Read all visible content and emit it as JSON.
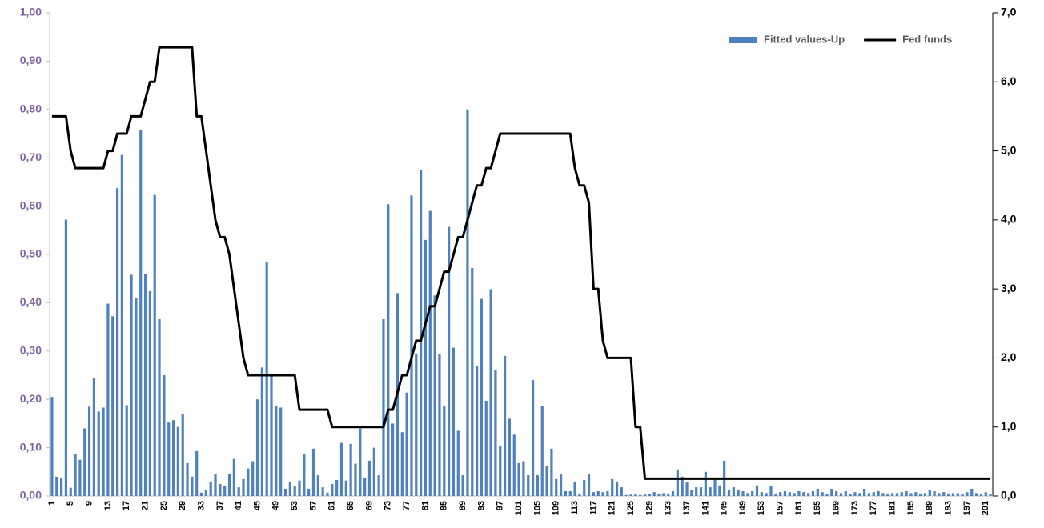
{
  "chart_data": {
    "type": "bar",
    "categories": [
      "1",
      null,
      null,
      null,
      "5",
      null,
      null,
      null,
      "9",
      null,
      null,
      null,
      "13",
      null,
      null,
      null,
      "17",
      null,
      null,
      null,
      "21",
      null,
      null,
      null,
      "25",
      null,
      null,
      null,
      "29",
      null,
      null,
      null,
      "33",
      null,
      null,
      null,
      "37",
      null,
      null,
      null,
      "41",
      null,
      null,
      null,
      "45",
      null,
      null,
      null,
      "49",
      null,
      null,
      null,
      "53",
      null,
      null,
      null,
      "57",
      null,
      null,
      null,
      "61",
      null,
      null,
      null,
      "65",
      null,
      null,
      null,
      "69",
      null,
      null,
      null,
      "73",
      null,
      null,
      null,
      "77",
      null,
      null,
      null,
      "81",
      null,
      null,
      null,
      "85",
      null,
      null,
      null,
      "89",
      null,
      null,
      null,
      "93",
      null,
      null,
      null,
      "97",
      null,
      null,
      null,
      "101",
      null,
      null,
      null,
      "105",
      null,
      null,
      null,
      "109",
      null,
      null,
      null,
      "113",
      null,
      null,
      null,
      "117",
      null,
      null,
      null,
      "121",
      null,
      null,
      null,
      "125",
      null,
      null,
      null,
      "129",
      null,
      null,
      null,
      "133",
      null,
      null,
      null,
      "137",
      null,
      null,
      null,
      "141",
      null,
      null,
      null,
      "145",
      null,
      null,
      null,
      "149",
      null,
      null,
      null,
      "153",
      null,
      null,
      null,
      "157",
      null,
      null,
      null,
      "161",
      null,
      null,
      null,
      "165",
      null,
      null,
      null,
      "169",
      null,
      null,
      null,
      "173",
      null,
      null,
      null,
      "177",
      null,
      null,
      null,
      "181",
      null,
      null,
      null,
      "185",
      null,
      null,
      null,
      "189",
      null,
      null,
      null,
      "193",
      null,
      null,
      null,
      "197",
      null,
      null,
      null,
      "201",
      null
    ],
    "series": [
      {
        "name": "Fitted values-Up",
        "type": "bar",
        "axis": "y",
        "color": "#4f81bd",
        "values": [
          0.205,
          0.04,
          0.037,
          0.572,
          0.017,
          0.087,
          0.075,
          0.14,
          0.185,
          0.245,
          0.175,
          0.183,
          0.398,
          0.372,
          0.637,
          0.706,
          0.188,
          0.458,
          0.41,
          0.757,
          0.46,
          0.424,
          0.623,
          0.366,
          0.25,
          0.152,
          0.157,
          0.143,
          0.17,
          0.068,
          0.04,
          0.093,
          0.007,
          0.012,
          0.03,
          0.045,
          0.025,
          0.02,
          0.045,
          0.077,
          0.018,
          0.035,
          0.057,
          0.072,
          0.2,
          0.266,
          0.484,
          0.25,
          0.186,
          0.183,
          0.015,
          0.03,
          0.02,
          0.032,
          0.087,
          0.015,
          0.098,
          0.043,
          0.018,
          0.007,
          0.025,
          0.033,
          0.11,
          0.032,
          0.108,
          0.067,
          0.14,
          0.037,
          0.073,
          0.1,
          0.043,
          0.366,
          0.604,
          0.15,
          0.42,
          0.132,
          0.214,
          0.622,
          0.295,
          0.675,
          0.53,
          0.59,
          0.415,
          0.293,
          0.187,
          0.557,
          0.307,
          0.135,
          0.043,
          0.8,
          0.472,
          0.27,
          0.408,
          0.197,
          0.428,
          0.26,
          0.103,
          0.29,
          0.16,
          0.127,
          0.068,
          0.072,
          0.043,
          0.24,
          0.043,
          0.187,
          0.063,
          0.098,
          0.035,
          0.045,
          0.01,
          0.01,
          0.03,
          0.005,
          0.033,
          0.045,
          0.008,
          0.01,
          0.008,
          0.01,
          0.035,
          0.03,
          0.018,
          0.002,
          0.003,
          0.004,
          0.002,
          0.003,
          0.005,
          0.008,
          0.004,
          0.006,
          0.004,
          0.01,
          0.055,
          0.04,
          0.028,
          0.012,
          0.018,
          0.018,
          0.05,
          0.018,
          0.035,
          0.022,
          0.073,
          0.012,
          0.018,
          0.012,
          0.01,
          0.006,
          0.01,
          0.022,
          0.008,
          0.006,
          0.02,
          0.004,
          0.008,
          0.01,
          0.008,
          0.006,
          0.01,
          0.008,
          0.006,
          0.01,
          0.015,
          0.008,
          0.005,
          0.015,
          0.01,
          0.006,
          0.01,
          0.005,
          0.008,
          0.006,
          0.015,
          0.006,
          0.008,
          0.01,
          0.006,
          0.005,
          0.006,
          0.006,
          0.008,
          0.01,
          0.006,
          0.008,
          0.005,
          0.006,
          0.012,
          0.01,
          0.006,
          0.008,
          0.005,
          0.006,
          0.006,
          0.004,
          0.008,
          0.015,
          0.006,
          0.005,
          0.008,
          0.004
        ]
      },
      {
        "name": "Fed funds",
        "type": "line",
        "axis": "y2",
        "color": "#000000",
        "values": [
          5.5,
          5.5,
          5.5,
          5.5,
          5.0,
          4.75,
          4.75,
          4.75,
          4.75,
          4.75,
          4.75,
          4.75,
          5.0,
          5.0,
          5.25,
          5.25,
          5.25,
          5.5,
          5.5,
          5.5,
          5.75,
          6.0,
          6.0,
          6.5,
          6.5,
          6.5,
          6.5,
          6.5,
          6.5,
          6.5,
          6.5,
          5.5,
          5.5,
          5.0,
          4.5,
          4.0,
          3.75,
          3.75,
          3.5,
          3.0,
          2.5,
          2.0,
          1.75,
          1.75,
          1.75,
          1.75,
          1.75,
          1.75,
          1.75,
          1.75,
          1.75,
          1.75,
          1.75,
          1.25,
          1.25,
          1.25,
          1.25,
          1.25,
          1.25,
          1.25,
          1.0,
          1.0,
          1.0,
          1.0,
          1.0,
          1.0,
          1.0,
          1.0,
          1.0,
          1.0,
          1.0,
          1.0,
          1.25,
          1.25,
          1.5,
          1.75,
          1.75,
          2.0,
          2.25,
          2.25,
          2.5,
          2.75,
          2.75,
          3.0,
          3.25,
          3.25,
          3.5,
          3.75,
          3.75,
          4.0,
          4.25,
          4.5,
          4.5,
          4.75,
          4.75,
          5.0,
          5.25,
          5.25,
          5.25,
          5.25,
          5.25,
          5.25,
          5.25,
          5.25,
          5.25,
          5.25,
          5.25,
          5.25,
          5.25,
          5.25,
          5.25,
          5.25,
          4.75,
          4.5,
          4.5,
          4.25,
          3.0,
          3.0,
          2.25,
          2.0,
          2.0,
          2.0,
          2.0,
          2.0,
          2.0,
          1.0,
          1.0,
          0.25,
          0.25,
          0.25,
          0.25,
          0.25,
          0.25,
          0.25,
          0.25,
          0.25,
          0.25,
          0.25,
          0.25,
          0.25,
          0.25,
          0.25,
          0.25,
          0.25,
          0.25,
          0.25,
          0.25,
          0.25,
          0.25,
          0.25,
          0.25,
          0.25,
          0.25,
          0.25,
          0.25,
          0.25,
          0.25,
          0.25,
          0.25,
          0.25,
          0.25,
          0.25,
          0.25,
          0.25,
          0.25,
          0.25,
          0.25,
          0.25,
          0.25,
          0.25,
          0.25,
          0.25,
          0.25,
          0.25,
          0.25,
          0.25,
          0.25,
          0.25,
          0.25,
          0.25,
          0.25,
          0.25,
          0.25,
          0.25,
          0.25,
          0.25,
          0.25,
          0.25,
          0.25,
          0.25,
          0.25,
          0.25,
          0.25,
          0.25,
          0.25,
          0.25,
          0.25,
          0.25,
          0.25,
          0.25,
          0.25,
          0.25
        ]
      }
    ],
    "ylim": [
      0,
      1
    ],
    "yticks": [
      {
        "value": 0,
        "label": "0,00"
      },
      {
        "value": 0.1,
        "label": "0,10"
      },
      {
        "value": 0.2,
        "label": "0,20"
      },
      {
        "value": 0.3,
        "label": "0,30"
      },
      {
        "value": 0.4,
        "label": "0,40"
      },
      {
        "value": 0.5,
        "label": "0,50"
      },
      {
        "value": 0.6,
        "label": "0,60"
      },
      {
        "value": 0.7,
        "label": "0,70"
      },
      {
        "value": 0.8,
        "label": "0,80"
      },
      {
        "value": 0.9,
        "label": "0,90"
      },
      {
        "value": 1,
        "label": "1,00"
      }
    ],
    "y2lim": [
      0,
      7
    ],
    "y2ticks": [
      {
        "value": 0,
        "label": "0,0"
      },
      {
        "value": 1,
        "label": "1,0"
      },
      {
        "value": 2,
        "label": "2,0"
      },
      {
        "value": 3,
        "label": "3,0"
      },
      {
        "value": 4,
        "label": "4,0"
      },
      {
        "value": 5,
        "label": "5,0"
      },
      {
        "value": 6,
        "label": "6,0"
      },
      {
        "value": 7,
        "label": "7,0"
      }
    ],
    "grid": false,
    "legend": "top-right"
  }
}
